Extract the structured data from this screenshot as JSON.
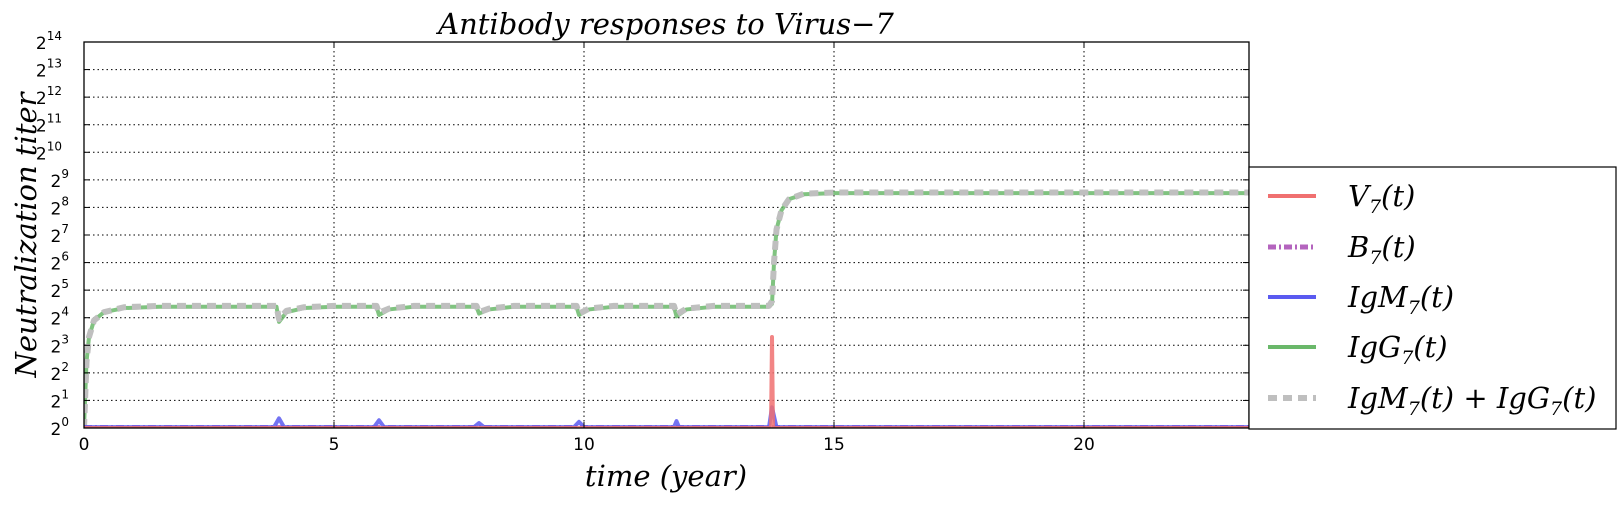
{
  "chart_data": {
    "type": "line",
    "title": "Antibody responses to Virus−7",
    "xlabel": "time (year)",
    "ylabel": "Neutralization  titer",
    "xlim": [
      0,
      23.3
    ],
    "ylim_log2": [
      0,
      14
    ],
    "y_scale": "log2",
    "x_ticks": [
      0,
      5,
      10,
      15,
      20
    ],
    "y_tick_exponents": [
      0,
      1,
      2,
      3,
      4,
      5,
      6,
      7,
      8,
      9,
      10,
      11,
      12,
      13,
      14
    ],
    "y_tick_base": "2",
    "grid": true,
    "legend_position": "outside-right",
    "series": [
      {
        "name": "V7(t)",
        "label_main": "V",
        "label_sub": "7",
        "label_tail": "(t)",
        "color": "#f07070",
        "style": "solid",
        "points": [
          [
            0,
            0
          ],
          [
            13.74,
            0
          ],
          [
            13.76,
            3.3
          ],
          [
            13.78,
            0
          ],
          [
            23.3,
            0
          ]
        ]
      },
      {
        "name": "B7(t)",
        "label_main": "B",
        "label_sub": "7",
        "label_tail": "(t)",
        "color": "#b464be",
        "style": "dashdot",
        "points": [
          [
            0,
            0.02
          ],
          [
            23.3,
            0.02
          ]
        ]
      },
      {
        "name": "IgM7(t)",
        "label_main": "IgM",
        "label_sub": "7",
        "label_tail": "(t)",
        "color": "#5a5af0",
        "style": "solid",
        "points": [
          [
            0,
            0.03
          ],
          [
            3.8,
            0.03
          ],
          [
            3.9,
            0.35
          ],
          [
            4.0,
            0.03
          ],
          [
            5.8,
            0.03
          ],
          [
            5.9,
            0.28
          ],
          [
            6.0,
            0.03
          ],
          [
            7.8,
            0.03
          ],
          [
            7.9,
            0.18
          ],
          [
            8.0,
            0.03
          ],
          [
            9.8,
            0.03
          ],
          [
            9.9,
            0.22
          ],
          [
            10.0,
            0.03
          ],
          [
            11.8,
            0.03
          ],
          [
            11.85,
            0.25
          ],
          [
            11.9,
            0.03
          ],
          [
            13.7,
            0.03
          ],
          [
            13.76,
            0.75
          ],
          [
            13.85,
            0.03
          ],
          [
            23.3,
            0.03
          ]
        ]
      },
      {
        "name": "IgG7(t)",
        "label_main": "IgG",
        "label_sub": "7",
        "label_tail": "(t)",
        "color": "#6ab86a",
        "style": "solid",
        "points": [
          [
            0,
            0
          ],
          [
            0.05,
            2.4
          ],
          [
            0.1,
            3.3
          ],
          [
            0.2,
            3.9
          ],
          [
            0.4,
            4.2
          ],
          [
            0.8,
            4.35
          ],
          [
            1.5,
            4.4
          ],
          [
            3.85,
            4.4
          ],
          [
            3.9,
            3.85
          ],
          [
            4.05,
            4.2
          ],
          [
            4.4,
            4.35
          ],
          [
            5.0,
            4.4
          ],
          [
            5.85,
            4.4
          ],
          [
            5.9,
            4.1
          ],
          [
            6.1,
            4.3
          ],
          [
            6.6,
            4.4
          ],
          [
            7.85,
            4.4
          ],
          [
            7.9,
            4.15
          ],
          [
            8.1,
            4.3
          ],
          [
            8.6,
            4.4
          ],
          [
            9.85,
            4.4
          ],
          [
            9.9,
            4.1
          ],
          [
            10.1,
            4.3
          ],
          [
            10.6,
            4.4
          ],
          [
            11.8,
            4.4
          ],
          [
            11.85,
            4.05
          ],
          [
            12.05,
            4.3
          ],
          [
            12.6,
            4.4
          ],
          [
            13.7,
            4.4
          ],
          [
            13.76,
            4.5
          ],
          [
            13.8,
            6.0
          ],
          [
            13.85,
            7.2
          ],
          [
            13.95,
            7.9
          ],
          [
            14.1,
            8.3
          ],
          [
            14.4,
            8.48
          ],
          [
            15.0,
            8.52
          ],
          [
            23.3,
            8.52
          ]
        ]
      },
      {
        "name": "IgM7(t)+IgG7(t)",
        "label_main": "IgM",
        "label_sub": "7",
        "label_tail": "(t) + ",
        "label_main2": "IgG",
        "label_sub2": "7",
        "label_tail2": "(t)",
        "color": "#bfbfbf",
        "style": "dashed",
        "points": [
          [
            0,
            0
          ],
          [
            0.05,
            2.4
          ],
          [
            0.1,
            3.3
          ],
          [
            0.2,
            3.9
          ],
          [
            0.4,
            4.2
          ],
          [
            0.8,
            4.38
          ],
          [
            1.5,
            4.43
          ],
          [
            3.85,
            4.43
          ],
          [
            3.9,
            3.95
          ],
          [
            4.05,
            4.25
          ],
          [
            4.4,
            4.38
          ],
          [
            5.0,
            4.43
          ],
          [
            5.85,
            4.43
          ],
          [
            5.9,
            4.18
          ],
          [
            6.1,
            4.33
          ],
          [
            6.6,
            4.43
          ],
          [
            7.85,
            4.43
          ],
          [
            7.9,
            4.2
          ],
          [
            8.1,
            4.33
          ],
          [
            8.6,
            4.43
          ],
          [
            9.85,
            4.43
          ],
          [
            9.9,
            4.15
          ],
          [
            10.1,
            4.33
          ],
          [
            10.6,
            4.43
          ],
          [
            11.8,
            4.43
          ],
          [
            11.85,
            4.12
          ],
          [
            12.05,
            4.33
          ],
          [
            12.6,
            4.43
          ],
          [
            13.7,
            4.43
          ],
          [
            13.76,
            4.6
          ],
          [
            13.8,
            6.0
          ],
          [
            13.85,
            7.2
          ],
          [
            13.95,
            7.9
          ],
          [
            14.1,
            8.3
          ],
          [
            14.4,
            8.5
          ],
          [
            15.0,
            8.54
          ],
          [
            23.3,
            8.54
          ]
        ]
      }
    ]
  }
}
